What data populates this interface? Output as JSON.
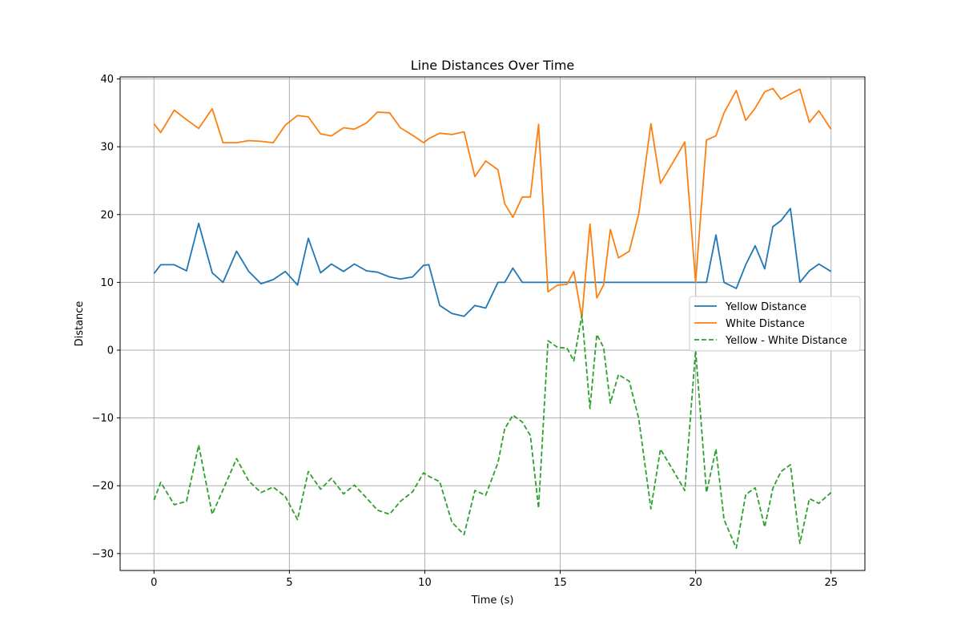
{
  "chart_data": {
    "type": "line",
    "title": "Line Distances Over Time",
    "xlabel": "Time (s)",
    "ylabel": "Distance",
    "xlim": [
      -1.25,
      26.25
    ],
    "ylim": [
      -32.5,
      40.3
    ],
    "xticks": [
      0,
      5,
      10,
      15,
      20,
      25
    ],
    "yticks": [
      -30,
      -20,
      -10,
      0,
      10,
      20,
      30,
      40
    ],
    "grid": true,
    "legend_position": "center-right",
    "x": [
      0,
      0.25,
      0.75,
      1.2,
      1.65,
      2.15,
      2.55,
      3.05,
      3.5,
      3.95,
      4.4,
      4.85,
      5.3,
      5.7,
      6.15,
      6.55,
      7.0,
      7.4,
      7.85,
      8.25,
      8.7,
      9.1,
      9.55,
      9.95,
      10.15,
      10.55,
      11.0,
      11.45,
      11.85,
      12.25,
      12.7,
      12.95,
      13.25,
      13.6,
      13.9,
      14.2,
      14.55,
      14.9,
      15.25,
      15.5,
      15.8,
      16.1,
      16.35,
      16.6,
      16.85,
      17.15,
      17.55,
      17.9,
      18.35,
      18.7,
      19.15,
      19.6,
      20.0,
      20.4,
      20.75,
      21.05,
      21.5,
      21.85,
      22.2,
      22.55,
      22.85,
      23.15,
      23.5,
      23.85,
      24.2,
      24.55,
      25.0
    ],
    "series": [
      {
        "name": "Yellow Distance",
        "color": "#1f77b4",
        "dash": "solid",
        "values": [
          11.3,
          12.6,
          12.6,
          11.7,
          18.7,
          11.4,
          10.0,
          14.6,
          11.6,
          9.8,
          10.4,
          11.6,
          9.6,
          16.5,
          11.4,
          12.7,
          11.6,
          12.7,
          11.7,
          11.5,
          10.8,
          10.5,
          10.8,
          12.5,
          12.6,
          6.6,
          5.4,
          5.0,
          6.6,
          6.2,
          10.0,
          10.0,
          12.1,
          10.0,
          10.0,
          10.0,
          10.0,
          10.0,
          10.0,
          10.0,
          10.0,
          10.0,
          10.0,
          10.0,
          10.0,
          10.0,
          10.0,
          10.0,
          10.0,
          10.0,
          10.0,
          10.0,
          10.0,
          10.0,
          17.0,
          10.0,
          9.1,
          12.6,
          15.4,
          12.0,
          18.2,
          19.1,
          20.9,
          10.0,
          11.7,
          12.7,
          11.6
        ]
      },
      {
        "name": "White Distance",
        "color": "#ff7f0e",
        "dash": "solid",
        "values": [
          33.4,
          32.1,
          35.4,
          34.0,
          32.7,
          35.6,
          30.6,
          30.6,
          30.9,
          30.8,
          30.6,
          33.2,
          34.6,
          34.4,
          31.9,
          31.6,
          32.8,
          32.6,
          33.5,
          35.1,
          35.0,
          32.8,
          31.7,
          30.6,
          31.2,
          32.0,
          31.8,
          32.2,
          25.6,
          27.9,
          26.6,
          21.6,
          19.6,
          22.6,
          22.6,
          33.3,
          8.6,
          9.6,
          9.7,
          11.6,
          4.8,
          18.6,
          7.7,
          9.6,
          17.8,
          13.6,
          14.6,
          20.1,
          33.4,
          24.6,
          27.6,
          30.7,
          10.0,
          31.0,
          31.6,
          35.0,
          38.3,
          33.9,
          35.7,
          38.1,
          38.6,
          37.0,
          37.8,
          38.5,
          33.6,
          35.3,
          32.6
        ]
      },
      {
        "name": "Yellow - White Distance",
        "color": "#2ca02c",
        "dash": "dashed",
        "values": [
          -22.1,
          -19.5,
          -22.8,
          -22.3,
          -14.0,
          -24.2,
          -20.6,
          -16.0,
          -19.3,
          -21.0,
          -20.2,
          -21.6,
          -25.0,
          -17.9,
          -20.5,
          -18.9,
          -21.2,
          -19.9,
          -21.8,
          -23.6,
          -24.2,
          -22.3,
          -20.9,
          -18.1,
          -18.6,
          -19.4,
          -25.4,
          -27.2,
          -20.7,
          -21.4,
          -16.6,
          -11.6,
          -9.6,
          -10.6,
          -12.6,
          -23.3,
          1.4,
          0.4,
          0.3,
          -1.6,
          5.2,
          -8.6,
          2.3,
          0.4,
          -7.8,
          -3.6,
          -4.6,
          -10.1,
          -23.4,
          -14.6,
          -17.6,
          -20.7,
          0.0,
          -21.0,
          -14.6,
          -25.0,
          -29.2,
          -21.3,
          -20.3,
          -26.1,
          -20.4,
          -17.9,
          -16.9,
          -28.5,
          -21.9,
          -22.6,
          -21.0
        ]
      }
    ]
  }
}
